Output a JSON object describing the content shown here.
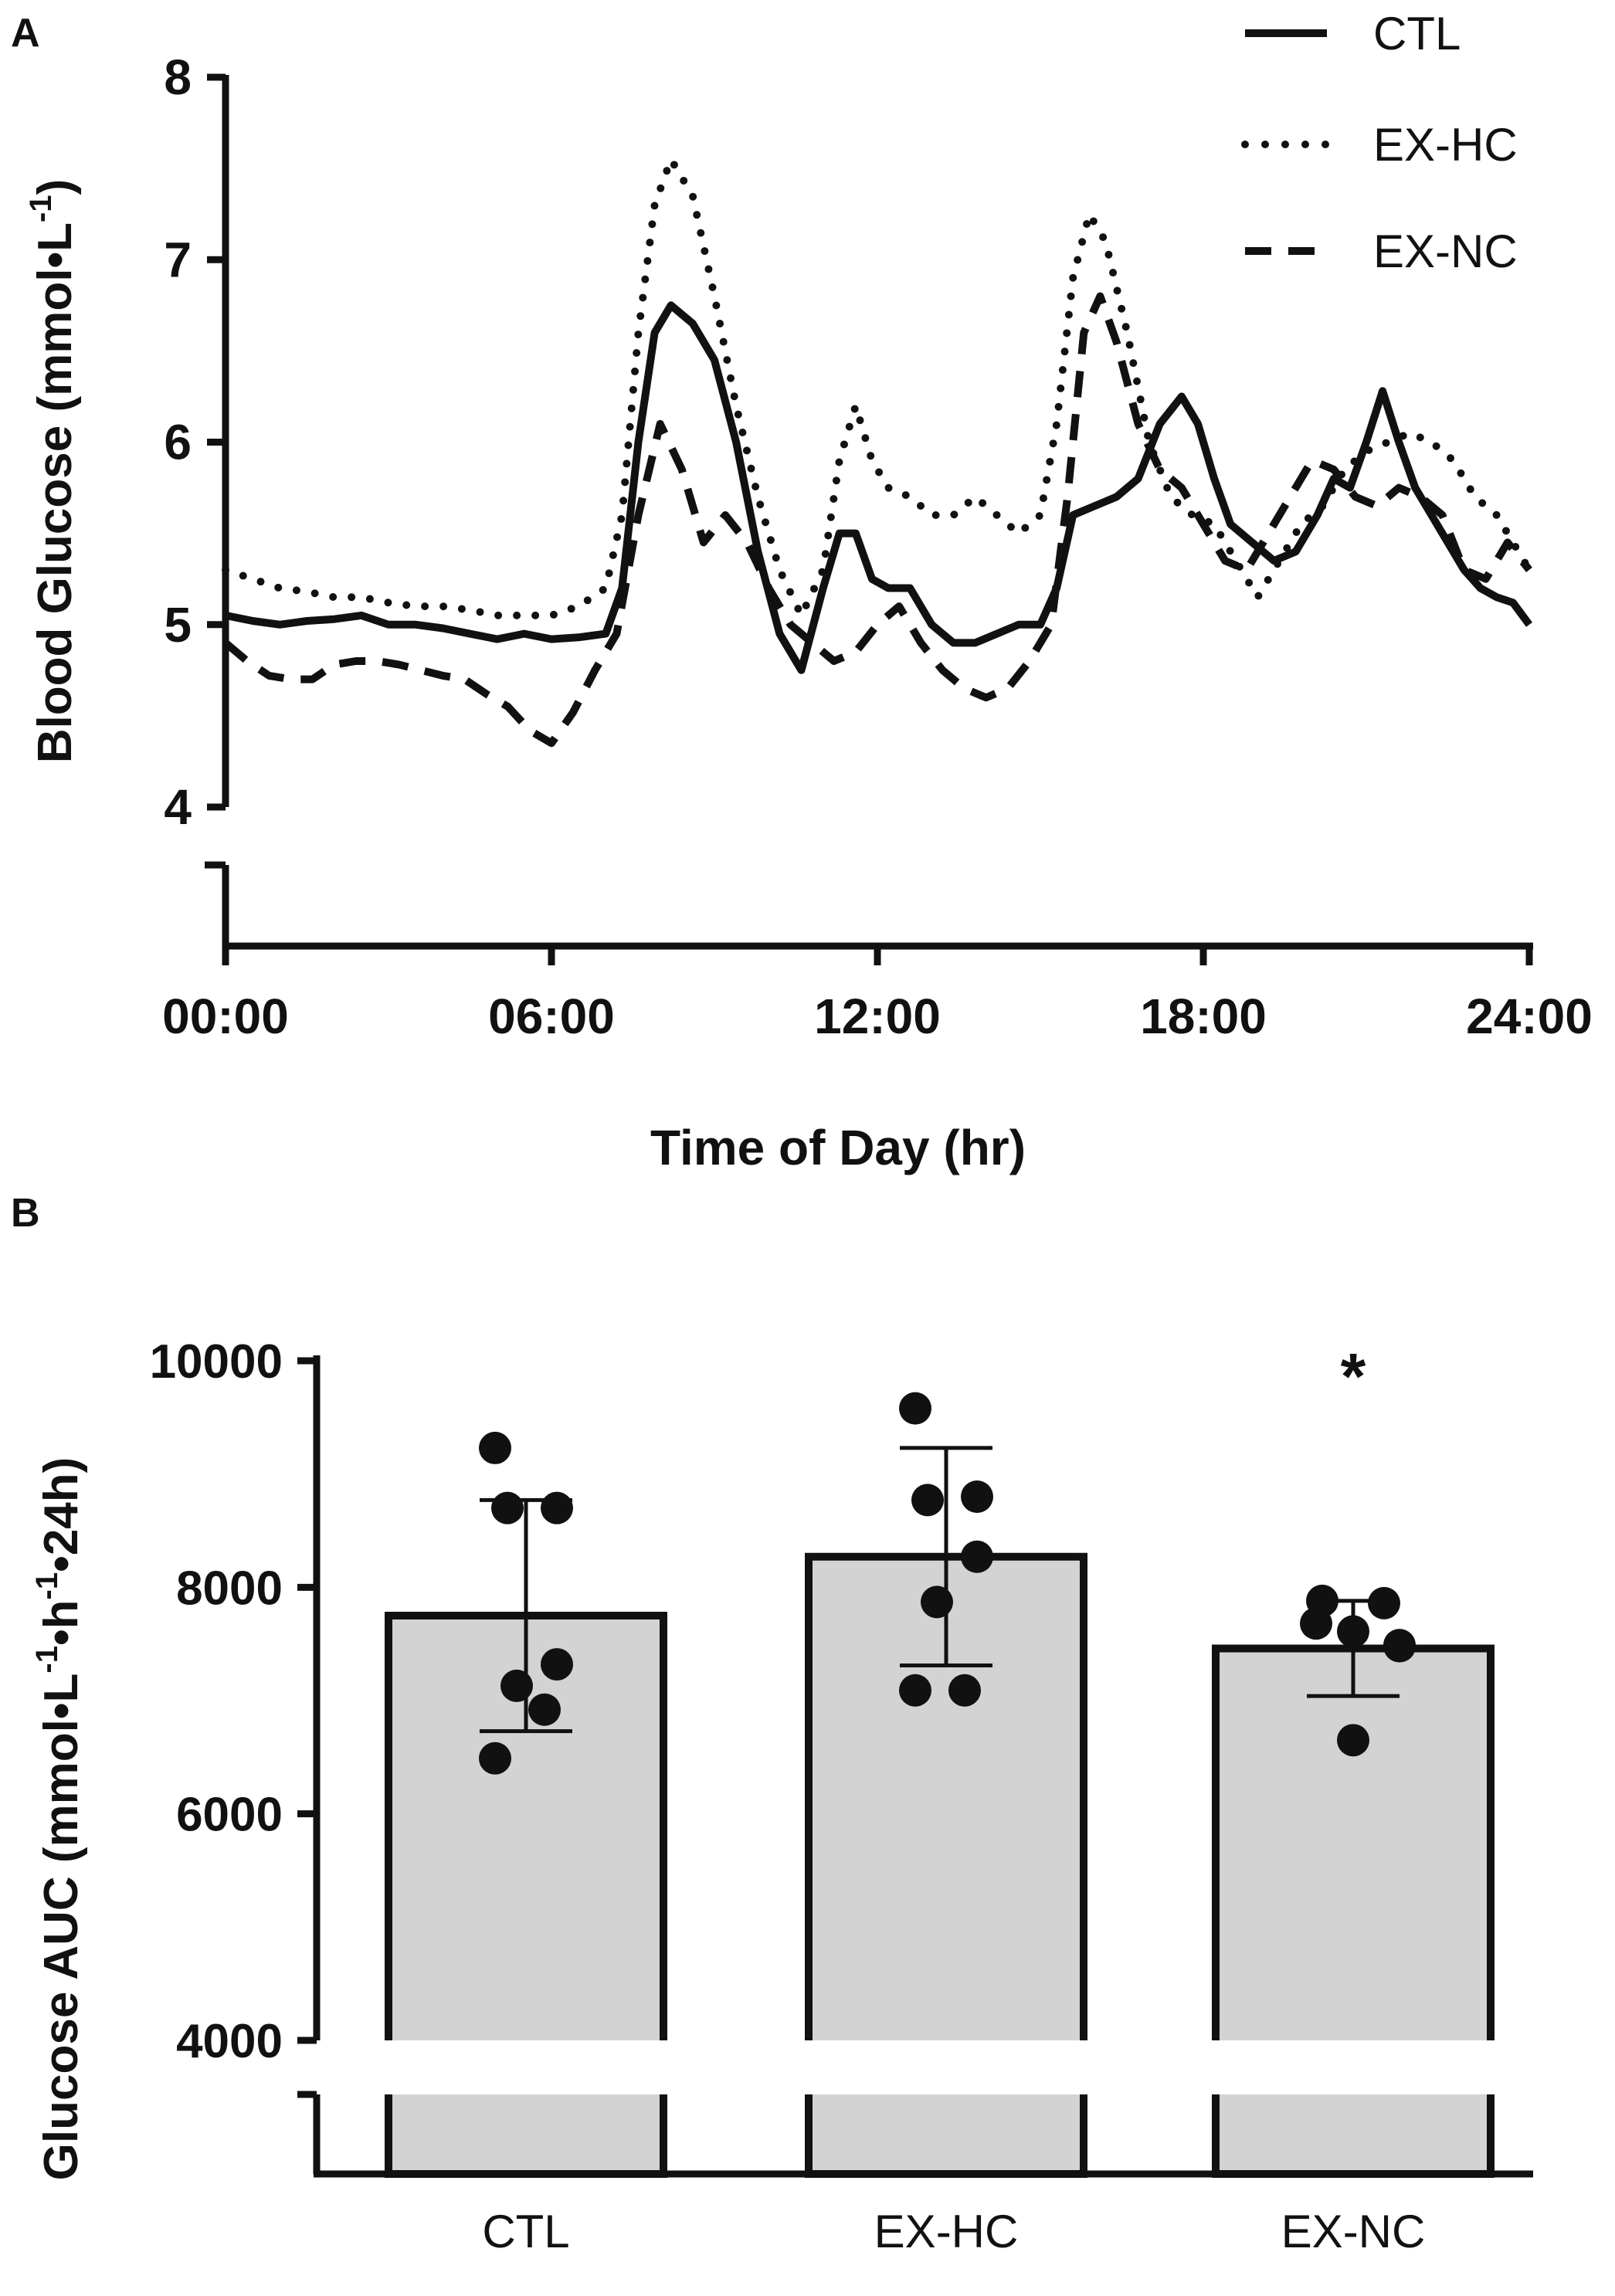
{
  "chart_data": [
    {
      "panel": "A",
      "type": "line",
      "xlabel": "Time of Day (hr)",
      "ylabel": "Blood Glucose (mmol•L",
      "ylabel_sup": "-1",
      "ylabel_end": ")",
      "xlim": [
        0,
        24
      ],
      "ylim": [
        4,
        8
      ],
      "xticks": [
        0,
        6,
        12,
        18,
        24
      ],
      "xtick_labels": [
        "00:00",
        "06:00",
        "12:00",
        "18:00",
        "24:00"
      ],
      "yticks": [
        4,
        5,
        6,
        7,
        8
      ],
      "ytick_labels": [
        "4",
        "5",
        "6",
        "7",
        "8"
      ],
      "legend_position": "top-right",
      "series": [
        {
          "name": "CTL",
          "style": "solid",
          "x": [
            0,
            0.5,
            1,
            1.5,
            2,
            2.5,
            3,
            3.5,
            4,
            4.5,
            5,
            5.5,
            6,
            6.5,
            7,
            7.3,
            7.6,
            7.9,
            8.2,
            8.6,
            9.0,
            9.4,
            9.8,
            10.2,
            10.6,
            11.0,
            11.3,
            11.6,
            11.9,
            12.2,
            12.6,
            13.0,
            13.4,
            13.8,
            14.2,
            14.6,
            15.0,
            15.3,
            15.6,
            16.0,
            16.4,
            16.8,
            17.2,
            17.6,
            17.9,
            18.2,
            18.5,
            18.9,
            19.3,
            19.7,
            20.1,
            20.4,
            20.7,
            21.0,
            21.3,
            21.6,
            21.9,
            22.2,
            22.5,
            22.8,
            23.1,
            23.4,
            23.7,
            24.0
          ],
          "y": [
            5.05,
            5.02,
            5.0,
            5.02,
            5.03,
            5.05,
            5.0,
            5.0,
            4.98,
            4.95,
            4.92,
            4.95,
            4.92,
            4.93,
            4.95,
            5.2,
            6.0,
            6.6,
            6.75,
            6.65,
            6.45,
            6.0,
            5.4,
            4.95,
            4.75,
            5.2,
            5.5,
            5.5,
            5.25,
            5.2,
            5.2,
            5.0,
            4.9,
            4.9,
            4.95,
            5.0,
            5.0,
            5.2,
            5.6,
            5.65,
            5.7,
            5.8,
            6.1,
            6.25,
            6.1,
            5.8,
            5.55,
            5.45,
            5.35,
            5.4,
            5.6,
            5.8,
            5.75,
            6.0,
            6.28,
            6.0,
            5.75,
            5.6,
            5.45,
            5.3,
            5.2,
            5.15,
            5.12,
            5.0
          ]
        },
        {
          "name": "EX-HC",
          "style": "dotted",
          "x": [
            0,
            0.5,
            1,
            1.5,
            2,
            2.5,
            3,
            3.5,
            4,
            4.5,
            5,
            5.5,
            6,
            6.5,
            7,
            7.3,
            7.6,
            7.9,
            8.2,
            8.6,
            9.0,
            9.4,
            9.8,
            10.2,
            10.6,
            11.0,
            11.3,
            11.6,
            11.9,
            12.2,
            12.6,
            13.0,
            13.4,
            13.8,
            14.2,
            14.6,
            15.0,
            15.3,
            15.6,
            15.9,
            16.2,
            16.6,
            17.0,
            17.4,
            17.8,
            18.2,
            18.6,
            19.0,
            19.4,
            19.8,
            20.2,
            20.6,
            21.0,
            21.4,
            21.8,
            22.2,
            22.6,
            23.0,
            23.4,
            23.7,
            24.0
          ],
          "y": [
            5.3,
            5.25,
            5.2,
            5.18,
            5.15,
            5.15,
            5.12,
            5.1,
            5.1,
            5.08,
            5.05,
            5.05,
            5.05,
            5.1,
            5.2,
            5.6,
            6.6,
            7.3,
            7.55,
            7.35,
            6.8,
            6.2,
            5.7,
            5.3,
            5.05,
            5.3,
            5.9,
            6.2,
            5.9,
            5.75,
            5.7,
            5.6,
            5.6,
            5.7,
            5.6,
            5.5,
            5.6,
            6.1,
            6.9,
            7.25,
            7.1,
            6.6,
            6.0,
            5.7,
            5.6,
            5.55,
            5.35,
            5.15,
            5.35,
            5.55,
            5.65,
            5.85,
            5.95,
            6.0,
            6.05,
            6.0,
            5.9,
            5.7,
            5.6,
            5.45,
            5.3
          ]
        },
        {
          "name": "EX-NC",
          "style": "dashed",
          "x": [
            0,
            0.4,
            0.8,
            1.2,
            1.6,
            2.0,
            2.4,
            2.8,
            3.2,
            3.6,
            4.0,
            4.4,
            4.8,
            5.2,
            5.6,
            6.0,
            6.4,
            6.8,
            7.2,
            7.6,
            8.0,
            8.4,
            8.8,
            9.2,
            9.6,
            10.0,
            10.4,
            10.8,
            11.2,
            11.6,
            12.0,
            12.4,
            12.8,
            13.2,
            13.6,
            14.0,
            14.4,
            14.8,
            15.2,
            15.5,
            15.8,
            16.1,
            16.4,
            16.8,
            17.2,
            17.6,
            18.0,
            18.4,
            18.8,
            19.2,
            19.6,
            20.0,
            20.4,
            20.8,
            21.2,
            21.6,
            22.0,
            22.4,
            22.8,
            23.2,
            23.6,
            24.0
          ],
          "y": [
            4.9,
            4.8,
            4.72,
            4.7,
            4.7,
            4.78,
            4.8,
            4.8,
            4.78,
            4.75,
            4.72,
            4.7,
            4.62,
            4.55,
            4.42,
            4.35,
            4.52,
            4.75,
            4.95,
            5.6,
            6.1,
            5.85,
            5.45,
            5.6,
            5.45,
            5.2,
            5.0,
            4.9,
            4.8,
            4.85,
            5.0,
            5.1,
            4.9,
            4.75,
            4.65,
            4.6,
            4.65,
            4.8,
            5.0,
            5.7,
            6.6,
            6.8,
            6.55,
            6.1,
            5.85,
            5.75,
            5.55,
            5.35,
            5.3,
            5.5,
            5.7,
            5.9,
            5.85,
            5.7,
            5.65,
            5.75,
            5.7,
            5.6,
            5.3,
            5.25,
            5.45,
            5.3
          ]
        }
      ]
    },
    {
      "panel": "B",
      "type": "bar",
      "ylabel": "Glucose AUC (mmol•L",
      "ylabel_parts": {
        "sup1": "-1",
        "mid": "•h",
        "sup2": "-1",
        "end": "•24h)"
      },
      "ylim": [
        4000,
        10000
      ],
      "yticks": [
        4000,
        6000,
        8000,
        10000
      ],
      "ytick_labels": [
        "4000",
        "6000",
        "8000",
        "10000"
      ],
      "categories": [
        "CTL",
        "EX-HC",
        "EX-NC"
      ],
      "values": [
        7750,
        8270,
        7460
      ],
      "sd": [
        1020,
        960,
        420
      ],
      "individual_points": [
        [
          9230,
          8700,
          8700,
          7320,
          7130,
          6920,
          6490
        ],
        [
          9580,
          8800,
          8770,
          8270,
          7870,
          7090,
          7090
        ],
        [
          7880,
          7860,
          7680,
          7610,
          7490,
          7480,
          6650
        ]
      ],
      "significance": [
        "",
        "",
        "*"
      ],
      "bar_color": "#d3d3d3"
    }
  ],
  "panel_labels": {
    "a": "A",
    "b": "B"
  }
}
